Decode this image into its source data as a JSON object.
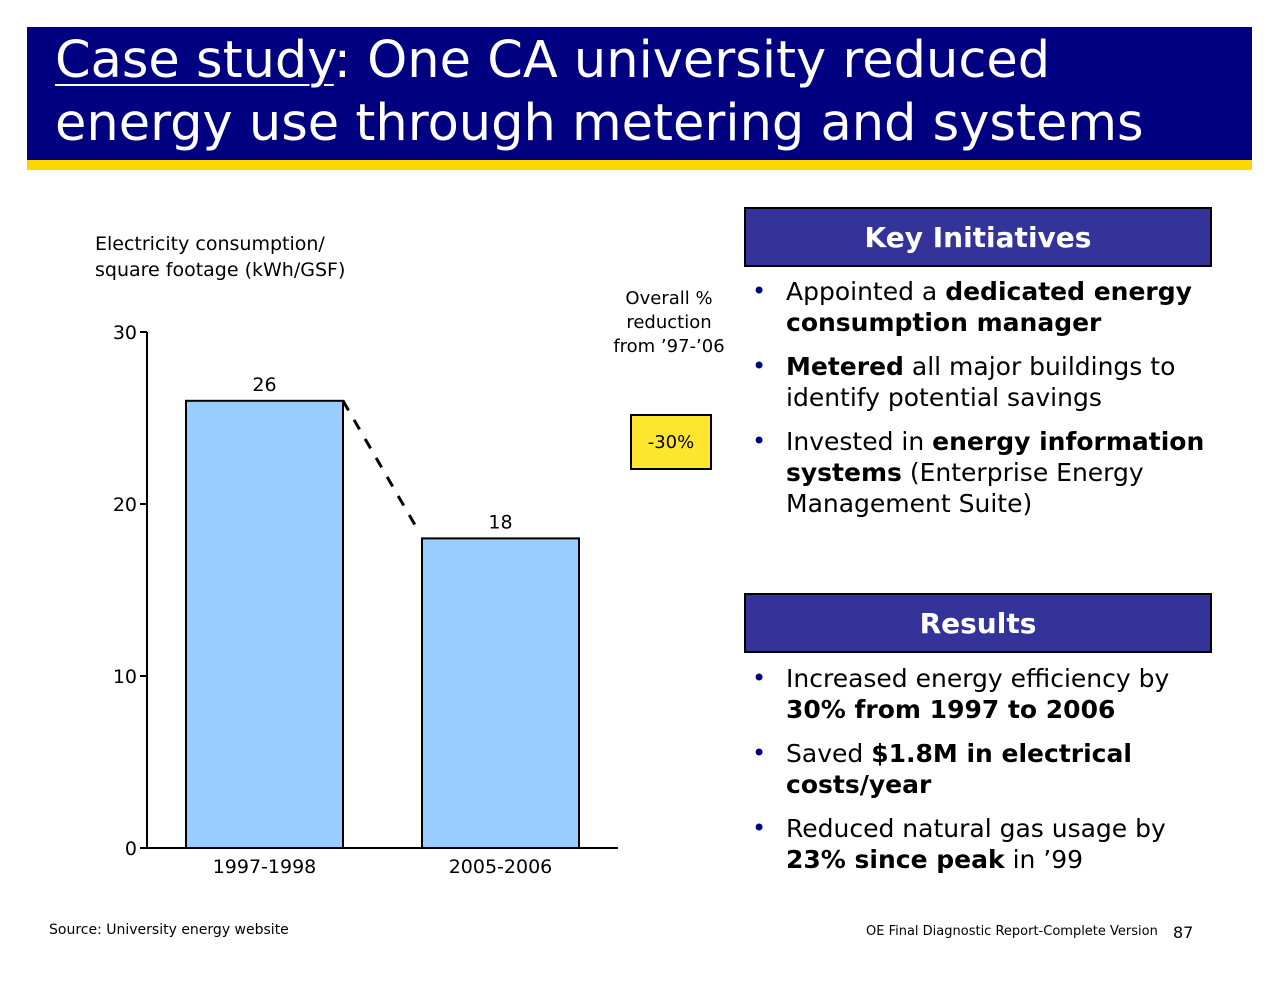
{
  "title": {
    "underlined": "Case study",
    "rest": ": One CA university reduced energy use through metering and systems"
  },
  "chart_data": {
    "type": "bar",
    "categories": [
      "1997-1998",
      "2005-2006"
    ],
    "values": [
      26,
      18
    ],
    "data_labels": [
      "26",
      "18"
    ],
    "ylabel_line1": "Electricity consumption/",
    "ylabel_line2": "square footage (kWh/GSF)",
    "ylim": [
      0,
      30
    ],
    "yticks": [
      0,
      10,
      20,
      30
    ],
    "ytick_labels": [
      "0",
      "10",
      "20",
      "30"
    ],
    "bar_color": "#99CCFF",
    "grid": false,
    "annotation": {
      "label_line1": "Overall %",
      "label_line2": "reduction",
      "label_line3": "from ’97-’06",
      "value": "-30%",
      "box_color": "#FFE62E"
    }
  },
  "key_initiatives": {
    "header": "Key Initiatives",
    "items": [
      {
        "before": "Appointed a ",
        "bold": "dedicated energy consumption manager",
        "after": ""
      },
      {
        "before": "",
        "bold": "Metered",
        "after": " all major buildings to identify potential savings"
      },
      {
        "before": "Invested in ",
        "bold": "energy information systems",
        "after": " (Enterprise Energy Management Suite)"
      }
    ]
  },
  "results": {
    "header": "Results",
    "items": [
      {
        "before": "Increased energy efficiency by ",
        "bold": "30% from 1997 to 2006",
        "after": ""
      },
      {
        "before": "Saved ",
        "bold": "$1.8M in electrical costs/year",
        "after": ""
      },
      {
        "before": "Reduced natural gas usage by ",
        "bold": "23% since peak",
        "after": " in ’99"
      }
    ]
  },
  "bullet_glyph": "•",
  "source": "Source: University energy website",
  "footer": "OE Final Diagnostic Report-Complete Version",
  "page_number": "87",
  "colors": {
    "title_bg": "#000080",
    "title_rule": "#FFD700",
    "panel_header_bg": "#333399",
    "bullet": "#000080"
  }
}
